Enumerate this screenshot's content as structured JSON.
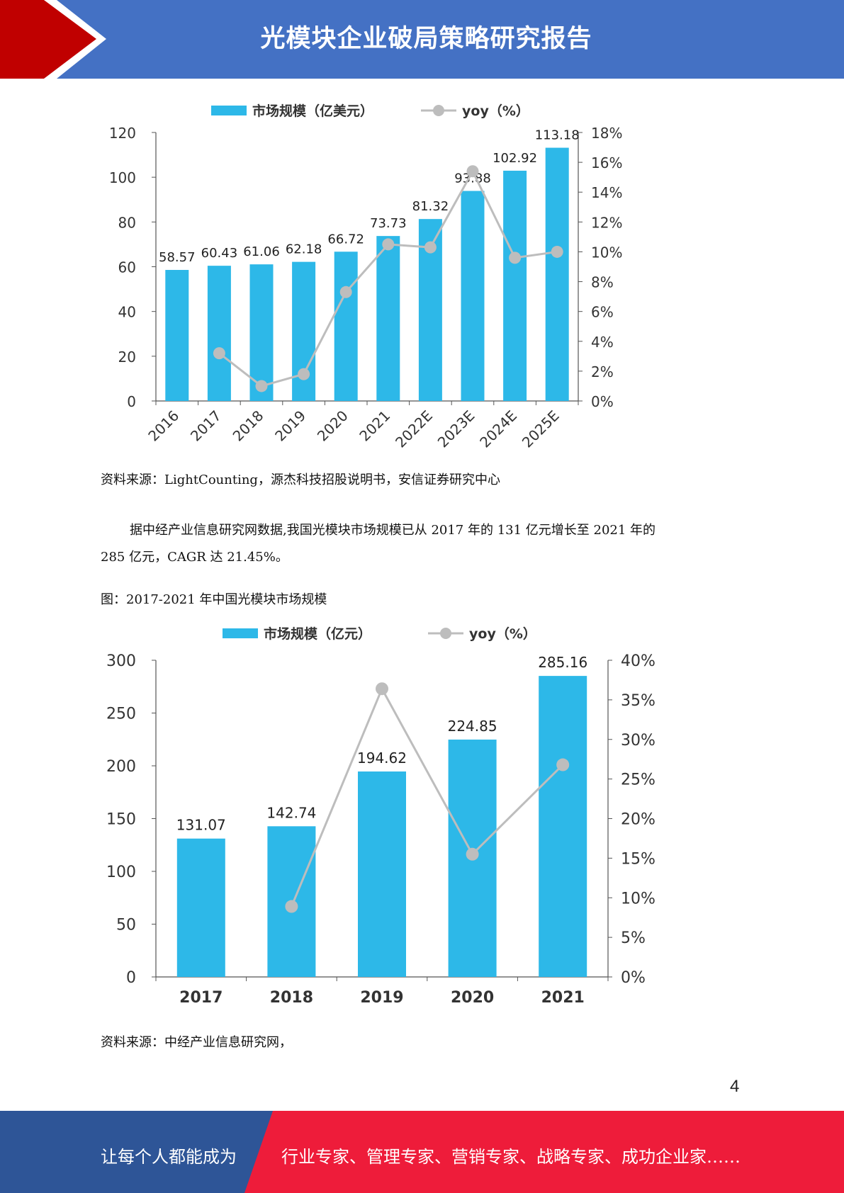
{
  "header": {
    "title": "光模块企业破局策略研究报告"
  },
  "chart1": {
    "legend_bar": "市场规模（亿美元）",
    "legend_line": "yoy（%）",
    "source": "资料来源：LightCounting，源杰科技招股说明书，安信证券研究中心"
  },
  "chart2": {
    "legend_bar": "市场规模（亿元）",
    "legend_line": "yoy（%）",
    "source": "资料来源：中经产业信息研究网，"
  },
  "body": {
    "paragraph_line1": "据中经产业信息研究网数据,我国光模块市场规模已从 2017 年的 131 亿元增长至 2021 年的",
    "paragraph_line2": "285 亿元，CAGR 达 21.45%。",
    "figure_caption": "图：2017-2021 年中国光模块市场规模"
  },
  "page_number": "4",
  "footer": {
    "left": "让每个人都能成为",
    "right": "行业专家、管理专家、营销专家、战略专家、成功企业家……"
  },
  "colors": {
    "header_blue": "#4471C4",
    "header_red": "#C00000",
    "bar": "#2DB8E8",
    "line": "#BDBDBD",
    "footer_blue": "#2E5597",
    "footer_red": "#EE1C3A"
  },
  "chart_data": [
    {
      "type": "bar",
      "categories": [
        "2016",
        "2017",
        "2018",
        "2019",
        "2020",
        "2021",
        "2022E",
        "2023E",
        "2024E",
        "2025E"
      ],
      "series": [
        {
          "name": "市场规模（亿美元）",
          "type": "bar",
          "values": [
            58.57,
            60.43,
            61.06,
            62.18,
            66.72,
            73.73,
            81.32,
            93.88,
            102.92,
            113.18
          ]
        },
        {
          "name": "yoy（%）",
          "type": "line",
          "axis": "right",
          "values": [
            null,
            3.2,
            1.0,
            1.8,
            7.3,
            10.5,
            10.3,
            15.4,
            9.6,
            10.0
          ]
        }
      ],
      "data_labels": [
        "58.57",
        "60.43",
        "61.06",
        "62.18",
        "66.72",
        "73.73",
        "81.32",
        "93.88",
        "102.92",
        "113.18"
      ],
      "ylim": [
        0,
        120
      ],
      "yticks": [
        "0",
        "20",
        "40",
        "60",
        "80",
        "100",
        "120"
      ],
      "y2lim": [
        0,
        18
      ],
      "y2ticks": [
        "0%",
        "2%",
        "4%",
        "6%",
        "8%",
        "10%",
        "12%",
        "14%",
        "16%",
        "18%"
      ],
      "legend": "top"
    },
    {
      "type": "bar",
      "categories": [
        "2017",
        "2018",
        "2019",
        "2020",
        "2021"
      ],
      "series": [
        {
          "name": "市场规模（亿元）",
          "type": "bar",
          "values": [
            131.07,
            142.74,
            194.62,
            224.85,
            285.16
          ]
        },
        {
          "name": "yoy（%）",
          "type": "line",
          "axis": "right",
          "values": [
            null,
            8.9,
            36.4,
            15.5,
            26.8
          ]
        }
      ],
      "data_labels": [
        "131.07",
        "142.74",
        "194.62",
        "224.85",
        "285.16"
      ],
      "ylim": [
        0,
        300
      ],
      "yticks": [
        "0",
        "50",
        "100",
        "150",
        "200",
        "250",
        "300"
      ],
      "y2lim": [
        0,
        40
      ],
      "y2ticks": [
        "0%",
        "5%",
        "10%",
        "15%",
        "20%",
        "25%",
        "30%",
        "35%",
        "40%"
      ],
      "legend": "top"
    }
  ]
}
